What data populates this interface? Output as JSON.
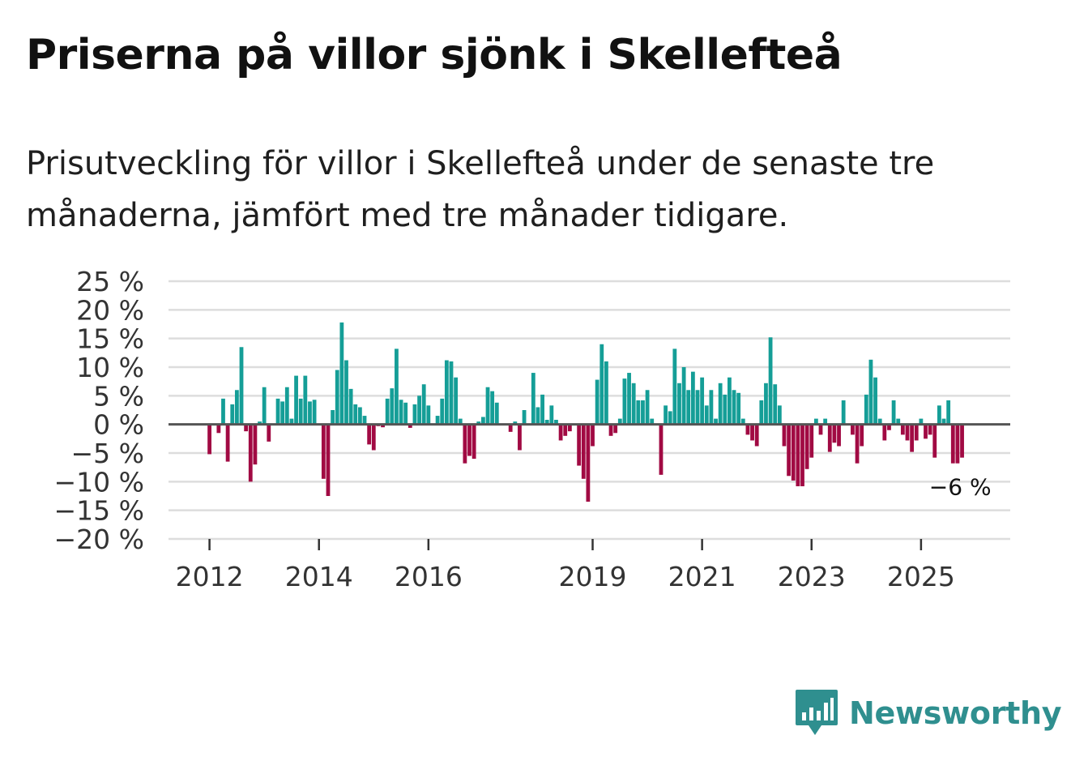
{
  "title": "Priserna på villor sjönk i Skellefteå",
  "subtitle": "Prisutveckling för villor i Skellefteå under de senaste tre månaderna, jämfört med tre månader tidigare.",
  "brand": {
    "name": "Newsworthy",
    "icon": "chart-speech-bubble-icon"
  },
  "colors": {
    "positive": "#159e97",
    "negative": "#a10a43",
    "grid": "#dddddd",
    "zero": "#555555",
    "brand": "#2f8f8f"
  },
  "chart_data": {
    "type": "bar",
    "title": "Priserna på villor sjönk i Skellefteå",
    "xlabel": "",
    "ylabel": "",
    "ylim": [
      -20,
      25
    ],
    "yticks": [
      25,
      20,
      15,
      10,
      5,
      0,
      -5,
      -10,
      -15,
      -20
    ],
    "ytick_labels": [
      "25 %",
      "20 %",
      "15 %",
      "10 %",
      "5 %",
      "0 %",
      "−5 %",
      "−10 %",
      "−15 %",
      "−20 %"
    ],
    "xticks": [
      2012,
      2014,
      2016,
      2019,
      2021,
      2023,
      2025
    ],
    "xtick_labels": [
      "2012",
      "2014",
      "2016",
      "2019",
      "2021",
      "2023",
      "2025"
    ],
    "grid": true,
    "start": [
      2012,
      1
    ],
    "last_value_label": "−6 %",
    "values": [
      -5.2,
      null,
      -1.5,
      4.5,
      -6.5,
      3.5,
      6,
      13.5,
      -1.2,
      -10,
      -7,
      0.5,
      6.5,
      -3,
      null,
      4.5,
      4,
      6.5,
      1,
      8.5,
      4.5,
      8.5,
      4,
      4.3,
      null,
      -9.5,
      -12.5,
      2.5,
      9.5,
      17.8,
      11.2,
      6.2,
      3.5,
      3,
      1.5,
      -3.5,
      -4.5,
      -0.3,
      -0.5,
      4.5,
      6.3,
      13.2,
      4.3,
      3.8,
      -0.6,
      3.5,
      5,
      7,
      3.3,
      null,
      1.5,
      4.5,
      11.2,
      11,
      8.2,
      1,
      -6.8,
      -5.5,
      -6,
      0.5,
      1.3,
      6.5,
      5.8,
      3.8,
      null,
      null,
      -1.3,
      0.5,
      -4.5,
      2.5,
      null,
      9,
      3,
      5.2,
      0.8,
      3.3,
      0.8,
      -2.8,
      -2,
      -1.2,
      null,
      -7.2,
      -9.5,
      -13.5,
      -3.8,
      7.8,
      14,
      11,
      -2,
      -1.5,
      1,
      8,
      9,
      7.2,
      4.2,
      4.2,
      6,
      1,
      null,
      -8.8,
      3.3,
      2.3,
      13.2,
      7.2,
      10,
      6,
      9.2,
      6,
      8.2,
      3.3,
      6,
      1,
      7.2,
      5.2,
      8.2,
      6,
      5.5,
      1,
      -1.8,
      -2.8,
      -3.8,
      4.2,
      7.2,
      15.2,
      7,
      3.3,
      -3.8,
      -9,
      -9.8,
      -10.8,
      -10.8,
      -7.8,
      -5.8,
      1,
      -1.8,
      1,
      -4.8,
      -3.2,
      -3.8,
      4.2,
      null,
      -1.8,
      -6.8,
      -3.8,
      5.2,
      11.3,
      8.2,
      1,
      -2.8,
      -1,
      4.2,
      1,
      -1.8,
      -2.8,
      -4.8,
      -2.8,
      1,
      -2.5,
      -1.8,
      -5.8,
      3.3,
      1,
      4.2,
      -6.8,
      -6.8,
      -5.8
    ]
  }
}
